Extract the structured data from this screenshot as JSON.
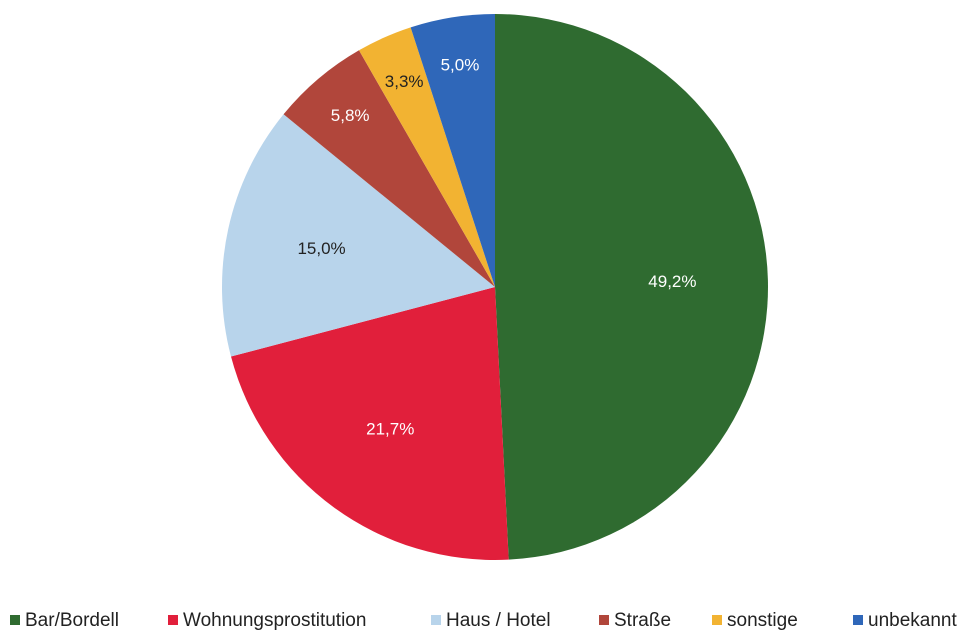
{
  "chart_data": {
    "type": "pie",
    "categories": [
      "Bar/Bordell",
      "Wohnungsprostitution",
      "Haus / Hotel",
      "Straße",
      "sonstige",
      "unbekannt"
    ],
    "values": [
      49.2,
      21.7,
      15.0,
      5.8,
      3.3,
      5.0
    ],
    "value_labels": [
      "49,2%",
      "21,7%",
      "15,0%",
      "5,8%",
      "3,3%",
      "5,0%"
    ],
    "colors": [
      "#2f6b30",
      "#e11f3b",
      "#b8d4eb",
      "#b1463b",
      "#f2b332",
      "#2f67b9"
    ],
    "legend": "bottom"
  }
}
